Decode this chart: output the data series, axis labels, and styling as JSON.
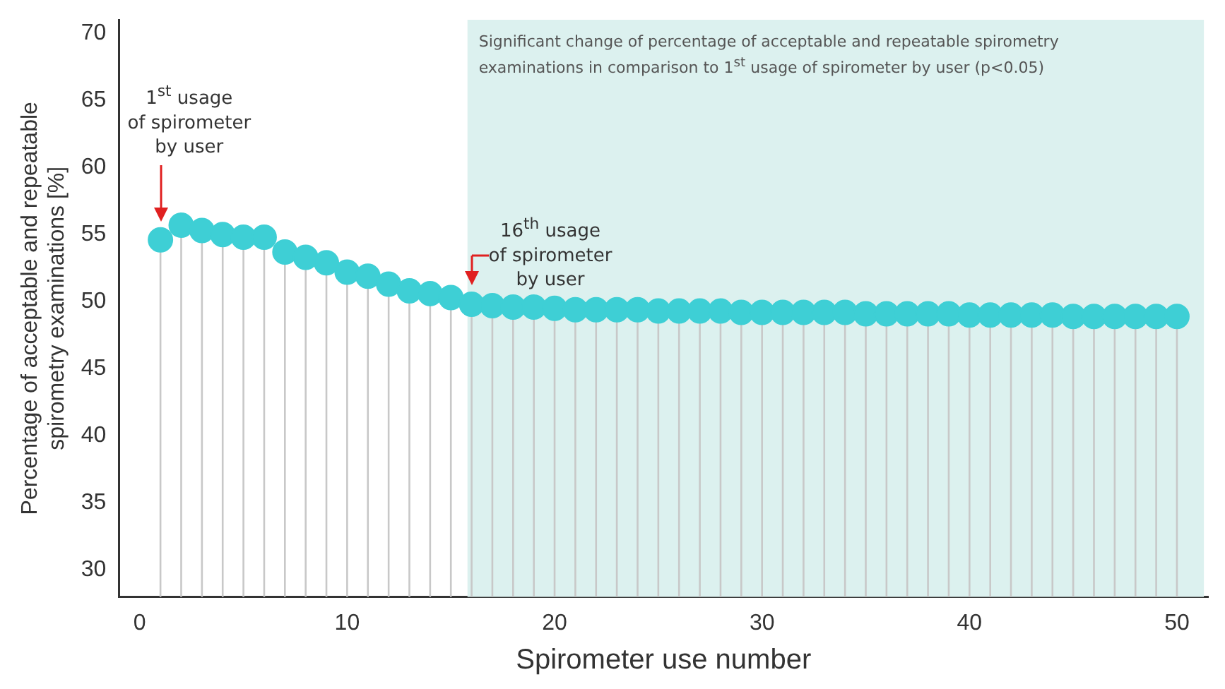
{
  "chart_data": {
    "type": "lollipop",
    "xlabel": "Spirometer use number",
    "ylabel": "Percentage of acceptable and repeatable\nspirometry examinations [%]",
    "x": [
      1,
      2,
      3,
      4,
      5,
      6,
      7,
      8,
      9,
      10,
      11,
      12,
      13,
      14,
      15,
      16,
      17,
      18,
      19,
      20,
      21,
      22,
      23,
      24,
      25,
      26,
      27,
      28,
      29,
      30,
      31,
      32,
      33,
      34,
      35,
      36,
      37,
      38,
      39,
      40,
      41,
      42,
      43,
      44,
      45,
      46,
      47,
      48,
      49,
      50
    ],
    "values": [
      54.6,
      55.7,
      55.3,
      55.0,
      54.8,
      54.8,
      53.7,
      53.3,
      52.9,
      52.2,
      51.9,
      51.3,
      50.8,
      50.6,
      50.3,
      49.8,
      49.7,
      49.6,
      49.6,
      49.5,
      49.4,
      49.4,
      49.4,
      49.4,
      49.3,
      49.3,
      49.3,
      49.3,
      49.2,
      49.2,
      49.2,
      49.2,
      49.2,
      49.2,
      49.1,
      49.1,
      49.1,
      49.1,
      49.1,
      49.0,
      49.0,
      49.0,
      49.0,
      49.0,
      48.9,
      48.9,
      48.9,
      48.9,
      48.9,
      48.9
    ],
    "color": "#3ecfd5",
    "marker": "circle",
    "grid": false,
    "legend": false,
    "xlim": [
      -1,
      51.5
    ],
    "xticks": [
      0,
      10,
      20,
      30,
      40,
      50
    ],
    "ylim": [
      28,
      71
    ],
    "yticks": [
      30,
      35,
      40,
      45,
      50,
      55,
      60,
      65,
      70
    ],
    "bands": [
      {
        "axis": "x",
        "from": 15.8,
        "to": 51.3,
        "color": "#dcf1ef",
        "label": "Significant change of percentage of acceptable and repeatable spirometry examinations in comparison to 1$^{st}$ usage of spirometer by user (p<0.05)"
      }
    ],
    "annotations": [
      {
        "text": "1$^{st}$ usage\nof spirometer\nby user",
        "x": 1,
        "y": 56
      },
      {
        "text": "16$^{th}$ usage\nof spirometer\nby user",
        "x": 16,
        "y": 51.2
      }
    ]
  }
}
